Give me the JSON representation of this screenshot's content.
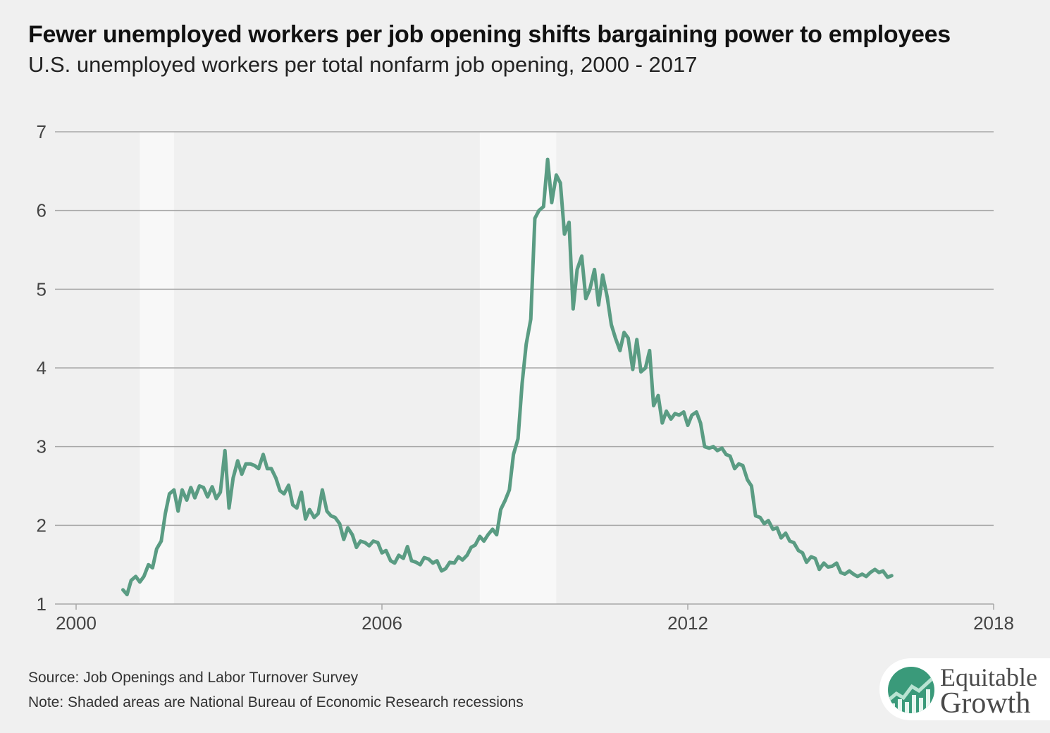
{
  "header": {
    "title": "Fewer unemployed workers per job opening shifts bargaining power to employees",
    "subtitle": "U.S. unemployed workers per total nonfarm job opening, 2000 - 2017"
  },
  "footer": {
    "source": "Source: Job Openings and Labor Turnover Survey",
    "note": "Note: Shaded areas are National Bureau of Economic Research recessions"
  },
  "logo": {
    "line1": "Equitable",
    "line2": "Growth",
    "icon": "rising-line-chart-icon"
  },
  "colors": {
    "background": "#f0f0f0",
    "line": "#5a9c83",
    "recession": "#f8f8f8",
    "grid": "#a8a8a8",
    "logo_green": "#3a9a7a"
  },
  "chart_data": {
    "type": "line",
    "xlim": [
      2000,
      2018
    ],
    "ylim": [
      1,
      7
    ],
    "x_ticks": [
      2000,
      2006,
      2012,
      2018
    ],
    "x_tick_labels": [
      "2000",
      "2006",
      "2012",
      "2018"
    ],
    "y_ticks": [
      1,
      2,
      3,
      4,
      5,
      6,
      7
    ],
    "y_tick_labels": [
      "1",
      "2",
      "3",
      "4",
      "5",
      "6",
      "7"
    ],
    "grid": true,
    "recessions": [
      [
        2001.25,
        2001.92
      ],
      [
        2007.92,
        2009.42
      ]
    ],
    "series": [
      {
        "points": [
          [
            2000.92,
            1.18
          ],
          [
            2001.0,
            1.12
          ],
          [
            2001.08,
            1.3
          ],
          [
            2001.17,
            1.35
          ],
          [
            2001.25,
            1.28
          ],
          [
            2001.33,
            1.35
          ],
          [
            2001.42,
            1.5
          ],
          [
            2001.5,
            1.46
          ],
          [
            2001.58,
            1.7
          ],
          [
            2001.67,
            1.8
          ],
          [
            2001.75,
            2.15
          ],
          [
            2001.83,
            2.4
          ],
          [
            2001.92,
            2.45
          ],
          [
            2002.0,
            2.18
          ],
          [
            2002.08,
            2.45
          ],
          [
            2002.17,
            2.32
          ],
          [
            2002.25,
            2.48
          ],
          [
            2002.33,
            2.35
          ],
          [
            2002.42,
            2.5
          ],
          [
            2002.5,
            2.48
          ],
          [
            2002.58,
            2.36
          ],
          [
            2002.67,
            2.49
          ],
          [
            2002.75,
            2.34
          ],
          [
            2002.83,
            2.42
          ],
          [
            2002.92,
            2.95
          ],
          [
            2003.0,
            2.22
          ],
          [
            2003.08,
            2.6
          ],
          [
            2003.17,
            2.82
          ],
          [
            2003.25,
            2.65
          ],
          [
            2003.33,
            2.78
          ],
          [
            2003.42,
            2.78
          ],
          [
            2003.5,
            2.76
          ],
          [
            2003.58,
            2.72
          ],
          [
            2003.67,
            2.9
          ],
          [
            2003.75,
            2.72
          ],
          [
            2003.83,
            2.72
          ],
          [
            2003.92,
            2.6
          ],
          [
            2004.0,
            2.44
          ],
          [
            2004.08,
            2.4
          ],
          [
            2004.17,
            2.51
          ],
          [
            2004.25,
            2.26
          ],
          [
            2004.33,
            2.22
          ],
          [
            2004.42,
            2.42
          ],
          [
            2004.5,
            2.08
          ],
          [
            2004.58,
            2.2
          ],
          [
            2004.67,
            2.1
          ],
          [
            2004.75,
            2.15
          ],
          [
            2004.83,
            2.45
          ],
          [
            2004.92,
            2.18
          ],
          [
            2005.0,
            2.12
          ],
          [
            2005.08,
            2.1
          ],
          [
            2005.17,
            2.02
          ],
          [
            2005.25,
            1.82
          ],
          [
            2005.33,
            1.97
          ],
          [
            2005.42,
            1.88
          ],
          [
            2005.5,
            1.72
          ],
          [
            2005.58,
            1.8
          ],
          [
            2005.67,
            1.78
          ],
          [
            2005.75,
            1.74
          ],
          [
            2005.83,
            1.8
          ],
          [
            2005.92,
            1.78
          ],
          [
            2006.0,
            1.65
          ],
          [
            2006.08,
            1.68
          ],
          [
            2006.17,
            1.55
          ],
          [
            2006.25,
            1.52
          ],
          [
            2006.33,
            1.62
          ],
          [
            2006.42,
            1.58
          ],
          [
            2006.5,
            1.73
          ],
          [
            2006.58,
            1.55
          ],
          [
            2006.67,
            1.53
          ],
          [
            2006.75,
            1.5
          ],
          [
            2006.83,
            1.59
          ],
          [
            2006.92,
            1.57
          ],
          [
            2007.0,
            1.52
          ],
          [
            2007.08,
            1.55
          ],
          [
            2007.17,
            1.42
          ],
          [
            2007.25,
            1.45
          ],
          [
            2007.33,
            1.53
          ],
          [
            2007.42,
            1.52
          ],
          [
            2007.5,
            1.6
          ],
          [
            2007.58,
            1.56
          ],
          [
            2007.67,
            1.62
          ],
          [
            2007.75,
            1.72
          ],
          [
            2007.83,
            1.75
          ],
          [
            2007.92,
            1.86
          ],
          [
            2008.0,
            1.8
          ],
          [
            2008.08,
            1.88
          ],
          [
            2008.17,
            1.95
          ],
          [
            2008.25,
            1.88
          ],
          [
            2008.33,
            2.2
          ],
          [
            2008.42,
            2.32
          ],
          [
            2008.5,
            2.45
          ],
          [
            2008.58,
            2.9
          ],
          [
            2008.67,
            3.1
          ],
          [
            2008.75,
            3.8
          ],
          [
            2008.83,
            4.3
          ],
          [
            2008.92,
            4.62
          ],
          [
            2009.0,
            5.9
          ],
          [
            2009.08,
            6.0
          ],
          [
            2009.17,
            6.05
          ],
          [
            2009.25,
            6.65
          ],
          [
            2009.33,
            6.1
          ],
          [
            2009.42,
            6.45
          ],
          [
            2009.5,
            6.35
          ],
          [
            2009.58,
            5.7
          ],
          [
            2009.67,
            5.85
          ],
          [
            2009.75,
            4.75
          ],
          [
            2009.83,
            5.25
          ],
          [
            2009.92,
            5.42
          ],
          [
            2010.0,
            4.88
          ],
          [
            2010.08,
            5.0
          ],
          [
            2010.17,
            5.25
          ],
          [
            2010.25,
            4.8
          ],
          [
            2010.33,
            5.18
          ],
          [
            2010.42,
            4.9
          ],
          [
            2010.5,
            4.55
          ],
          [
            2010.58,
            4.38
          ],
          [
            2010.67,
            4.22
          ],
          [
            2010.75,
            4.45
          ],
          [
            2010.83,
            4.38
          ],
          [
            2010.92,
            3.98
          ],
          [
            2011.0,
            4.36
          ],
          [
            2011.08,
            3.95
          ],
          [
            2011.17,
            4.0
          ],
          [
            2011.25,
            4.22
          ],
          [
            2011.33,
            3.52
          ],
          [
            2011.42,
            3.65
          ],
          [
            2011.5,
            3.3
          ],
          [
            2011.58,
            3.45
          ],
          [
            2011.67,
            3.35
          ],
          [
            2011.75,
            3.42
          ],
          [
            2011.83,
            3.4
          ],
          [
            2011.92,
            3.44
          ],
          [
            2012.0,
            3.27
          ],
          [
            2012.08,
            3.4
          ],
          [
            2012.17,
            3.44
          ],
          [
            2012.25,
            3.3
          ],
          [
            2012.33,
            3.0
          ],
          [
            2012.42,
            2.98
          ],
          [
            2012.5,
            3.0
          ],
          [
            2012.58,
            2.95
          ],
          [
            2012.67,
            2.98
          ],
          [
            2012.75,
            2.9
          ],
          [
            2012.83,
            2.88
          ],
          [
            2012.92,
            2.72
          ],
          [
            2013.0,
            2.78
          ],
          [
            2013.08,
            2.76
          ],
          [
            2013.17,
            2.58
          ],
          [
            2013.25,
            2.5
          ],
          [
            2013.33,
            2.12
          ],
          [
            2013.42,
            2.1
          ],
          [
            2013.5,
            2.02
          ],
          [
            2013.58,
            2.06
          ],
          [
            2013.67,
            1.95
          ],
          [
            2013.75,
            1.97
          ],
          [
            2013.83,
            1.84
          ],
          [
            2013.92,
            1.9
          ],
          [
            2014.0,
            1.8
          ],
          [
            2014.08,
            1.78
          ],
          [
            2014.17,
            1.68
          ],
          [
            2014.25,
            1.65
          ],
          [
            2014.33,
            1.53
          ],
          [
            2014.42,
            1.6
          ],
          [
            2014.5,
            1.58
          ],
          [
            2014.58,
            1.44
          ],
          [
            2014.67,
            1.52
          ],
          [
            2014.75,
            1.47
          ],
          [
            2014.83,
            1.48
          ],
          [
            2014.92,
            1.52
          ],
          [
            2015.0,
            1.4
          ],
          [
            2015.08,
            1.38
          ],
          [
            2015.17,
            1.42
          ],
          [
            2015.25,
            1.38
          ],
          [
            2015.33,
            1.35
          ],
          [
            2015.42,
            1.38
          ],
          [
            2015.5,
            1.35
          ],
          [
            2015.58,
            1.4
          ],
          [
            2015.67,
            1.44
          ],
          [
            2015.75,
            1.4
          ],
          [
            2015.83,
            1.42
          ],
          [
            2015.92,
            1.34
          ],
          [
            2016.0,
            1.36
          ]
        ]
      }
    ]
  }
}
